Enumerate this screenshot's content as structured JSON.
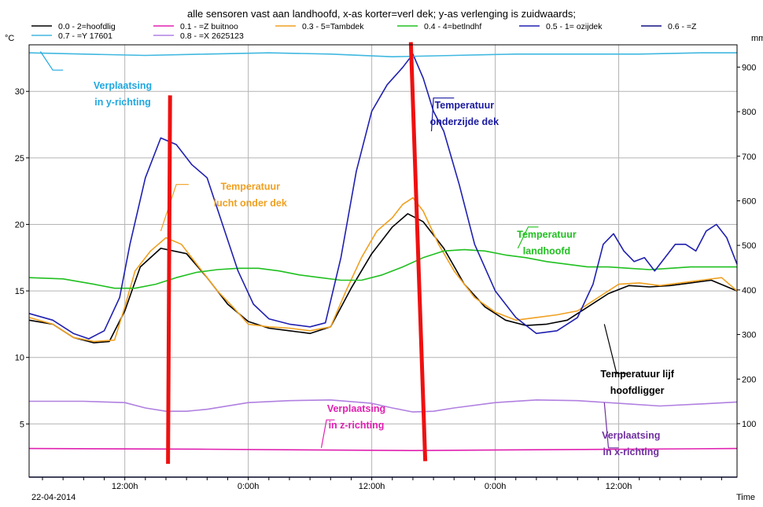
{
  "chart_data": {
    "type": "line",
    "title": "alle sensoren vast aan landhoofd, x-as korter=verl dek; y-as verlenging is zuidwaards;",
    "date_label": "22-04-2014",
    "xlabel": "Time",
    "ylabel_left": "°C",
    "ylabel_right": "mm",
    "x_ticks": [
      {
        "h": 12,
        "label": "12:00h"
      },
      {
        "h": 24,
        "label": "0:00h"
      },
      {
        "h": 36,
        "label": "12:00h"
      },
      {
        "h": 48,
        "label": "0:00h"
      },
      {
        "h": 60,
        "label": "12:00h"
      }
    ],
    "xlim_hours": [
      2.7,
      71.5
    ],
    "ylim_left": [
      1,
      33.5
    ],
    "yticks_left": [
      5,
      10,
      15,
      20,
      25,
      30
    ],
    "ylim_right": [
      -20,
      950
    ],
    "yticks_right": [
      100,
      200,
      300,
      400,
      500,
      600,
      700,
      800,
      900
    ],
    "legend": [
      {
        "label": "0.0 - 2=hoofdlig",
        "color": "#000000"
      },
      {
        "label": "0.1 - =Z buitnoo",
        "color": "#e020b0"
      },
      {
        "label": "0.3 - 5=Tambdek",
        "color": "#f0a020"
      },
      {
        "label": "0.4 - 4=betlndhf",
        "color": "#20c020"
      },
      {
        "label": "0.5 - 1= ozijdek",
        "color": "#2020b0"
      },
      {
        "label": "0.6 - =Z",
        "color": "#101080"
      },
      {
        "label": "0.7 - =Y 17601",
        "color": "#40b8e0"
      },
      {
        "label": "0.8 - =X 2625123",
        "color": "#b080e0"
      }
    ],
    "series": [
      {
        "name": "0.0 - 2=hoofdlig",
        "color": "#000000",
        "axis": "left",
        "x": [
          2.7,
          5,
          7,
          9,
          10.5,
          12,
          13.5,
          15.5,
          18,
          20,
          22,
          24,
          26,
          28,
          30,
          32,
          34,
          36,
          38,
          39.5,
          41,
          43,
          45,
          47,
          49,
          51,
          53,
          55,
          57,
          59,
          61,
          63,
          65,
          67,
          69,
          71.5
        ],
        "y": [
          12.8,
          12.5,
          11.5,
          11.1,
          11.2,
          13.5,
          16.8,
          18.2,
          17.8,
          16.0,
          14.0,
          12.7,
          12.2,
          12.0,
          11.8,
          12.3,
          15.2,
          17.8,
          19.8,
          20.8,
          20.2,
          18.2,
          15.5,
          13.8,
          12.8,
          12.4,
          12.5,
          12.8,
          13.8,
          14.8,
          15.4,
          15.3,
          15.4,
          15.6,
          15.8,
          15.0
        ]
      },
      {
        "name": "0.1 - =Z buitnoo",
        "color": "#e020b0",
        "axis": "left",
        "x": [
          2.7,
          20,
          40,
          60,
          71.5
        ],
        "y": [
          3.15,
          3.1,
          3.0,
          3.1,
          3.15
        ]
      },
      {
        "name": "0.3 - 5=Tambdek",
        "color": "#f0a020",
        "axis": "left",
        "x": [
          2.7,
          5,
          7,
          9,
          11,
          12,
          13,
          14.5,
          16,
          17.5,
          19,
          21,
          22.5,
          24,
          26,
          28,
          30,
          32,
          33.5,
          35,
          36.5,
          38,
          39,
          40,
          41,
          42.5,
          44,
          46,
          48,
          50,
          52,
          54,
          56,
          58,
          60,
          62,
          64,
          66,
          68,
          70,
          71.5
        ],
        "y": [
          13.0,
          12.5,
          11.5,
          11.2,
          11.3,
          13.8,
          16.5,
          18.0,
          19.0,
          18.5,
          17.0,
          15.0,
          13.8,
          12.5,
          12.3,
          12.2,
          12.0,
          12.3,
          15.0,
          17.5,
          19.5,
          20.5,
          21.5,
          22.0,
          21.0,
          18.5,
          16.5,
          14.5,
          13.4,
          12.8,
          13.0,
          13.2,
          13.5,
          14.5,
          15.5,
          15.6,
          15.4,
          15.6,
          15.8,
          16.0,
          15.0
        ]
      },
      {
        "name": "0.4 - 4=betlndhf",
        "color": "#20c020",
        "axis": "left",
        "x": [
          2.7,
          6,
          9,
          11,
          13,
          15,
          17,
          19,
          21,
          23,
          25,
          27,
          29,
          31,
          33,
          35,
          37,
          39,
          41,
          43,
          45,
          47,
          49,
          51,
          53,
          55,
          57,
          59,
          61,
          63,
          65,
          67,
          69,
          71.5
        ],
        "y": [
          16.0,
          15.9,
          15.5,
          15.2,
          15.2,
          15.5,
          16.0,
          16.4,
          16.6,
          16.7,
          16.7,
          16.5,
          16.2,
          16.0,
          15.8,
          15.8,
          16.2,
          16.8,
          17.5,
          18.0,
          18.1,
          18.0,
          17.7,
          17.5,
          17.2,
          17.0,
          16.8,
          16.8,
          16.7,
          16.6,
          16.7,
          16.8,
          16.8,
          16.8
        ]
      },
      {
        "name": "0.5 - 1= ozijdek",
        "color": "#2020b0",
        "axis": "left",
        "x": [
          2.7,
          5,
          7,
          8.5,
          10,
          11.5,
          12.5,
          14,
          15.5,
          17,
          18.5,
          20,
          21.5,
          23,
          24.5,
          26,
          28,
          30,
          31.5,
          33,
          34.5,
          36,
          37.5,
          39,
          40,
          41,
          42,
          43,
          44.5,
          46,
          48,
          50,
          52,
          54,
          56,
          57.5,
          58.5,
          59.5,
          60.5,
          61.5,
          62.5,
          63.5,
          64.5,
          65.5,
          66.5,
          67.5,
          68.5,
          69.5,
          70.5,
          71.5
        ],
        "y": [
          13.3,
          12.8,
          11.8,
          11.4,
          12.0,
          14.5,
          18.5,
          23.5,
          26.5,
          26.0,
          24.5,
          23.5,
          20.0,
          16.5,
          14.0,
          12.9,
          12.5,
          12.3,
          12.6,
          17.5,
          24.0,
          28.5,
          30.5,
          31.8,
          32.8,
          31.0,
          28.5,
          27.0,
          23.0,
          18.5,
          15.0,
          13.0,
          11.8,
          12.0,
          13.0,
          15.5,
          18.5,
          19.3,
          18.0,
          17.2,
          17.5,
          16.5,
          17.5,
          18.5,
          18.5,
          18.0,
          19.5,
          20.0,
          19.0,
          17.0
        ]
      },
      {
        "name": "0.6 - =Z",
        "color": "#101080",
        "axis": "left",
        "x": [
          2.7,
          71.5
        ],
        "y": [
          1.0,
          1.0
        ]
      },
      {
        "name": "0.7 - =Y 17601",
        "color": "#40b8e0",
        "axis": "left",
        "x": [
          2.7,
          8,
          14,
          20,
          26,
          32,
          38,
          44,
          50,
          56,
          62,
          68,
          71.5
        ],
        "y": [
          32.9,
          32.8,
          32.7,
          32.8,
          32.9,
          32.8,
          32.6,
          32.7,
          32.8,
          32.8,
          32.8,
          32.9,
          32.9
        ]
      },
      {
        "name": "0.8 - =X 2625123",
        "color": "#b080e0",
        "axis": "left",
        "x": [
          2.7,
          8,
          12,
          14,
          16,
          18,
          20,
          24,
          28,
          32,
          36,
          38,
          40,
          42,
          44,
          48,
          52,
          56,
          60,
          64,
          68,
          71.5
        ],
        "y": [
          6.7,
          6.7,
          6.6,
          6.2,
          5.95,
          5.95,
          6.1,
          6.6,
          6.75,
          6.8,
          6.55,
          6.2,
          5.9,
          5.95,
          6.2,
          6.6,
          6.8,
          6.75,
          6.55,
          6.35,
          6.5,
          6.65
        ]
      }
    ],
    "annotations": [
      {
        "text": [
          "Verplaatsing",
          "in y-richting"
        ],
        "color": "#20a8e0",
        "anchor_hx": 11.8,
        "anchor_y": 30.2,
        "lead": [
          [
            3.8,
            33.0
          ],
          [
            5.0,
            31.6
          ],
          [
            6.0,
            31.6
          ]
        ]
      },
      {
        "text": [
          "Temperatuur",
          "lucht onder dek"
        ],
        "color": "#f0a020",
        "anchor_hx": 24.2,
        "anchor_y": 22.6,
        "lead": [
          [
            18.2,
            23.0
          ],
          [
            17.0,
            23.0
          ],
          [
            15.5,
            19.5
          ]
        ]
      },
      {
        "text": [
          "Temperatuur",
          "onderzijde dek"
        ],
        "color": "#1a1aa0",
        "anchor_hx": 45.0,
        "anchor_y": 28.7,
        "lead": [
          [
            44.0,
            29.5
          ],
          [
            42.0,
            29.5
          ],
          [
            41.8,
            27.0
          ]
        ]
      },
      {
        "text": [
          "Temperatuur",
          "landhoofd"
        ],
        "color": "#20c020",
        "anchor_hx": 53.0,
        "anchor_y": 19.0,
        "lead": [
          [
            52.2,
            19.8
          ],
          [
            51.2,
            19.8
          ],
          [
            50.2,
            18.2
          ]
        ]
      },
      {
        "text": [
          "Temperatuur lijf",
          "hoofdligger"
        ],
        "color": "#000000",
        "anchor_hx": 61.8,
        "anchor_y": 8.5,
        "lead": [
          [
            60.8,
            8.8
          ],
          [
            59.8,
            8.8
          ],
          [
            58.6,
            12.5
          ]
        ]
      },
      {
        "text": [
          "Verplaatsing",
          "in z-richting"
        ],
        "color": "#e020b0",
        "anchor_hx": 34.5,
        "anchor_y": 5.9,
        "lead": [
          [
            32.4,
            5.3
          ],
          [
            31.6,
            5.3
          ],
          [
            31.1,
            3.2
          ]
        ]
      },
      {
        "text": [
          "Verplaatsing",
          "in x-richting"
        ],
        "color": "#7030a0",
        "anchor_hx": 61.2,
        "anchor_y": 3.9,
        "lead": [
          [
            60.0,
            3.2
          ],
          [
            59.0,
            3.2
          ],
          [
            58.6,
            6.6
          ]
        ]
      }
    ],
    "markers": [
      {
        "type": "red-vertical-line",
        "color": "#ee1111",
        "x1": 16.2,
        "y1": 2.0,
        "x2": 16.4,
        "y2": 29.7
      },
      {
        "type": "red-vertical-line",
        "color": "#ee1111",
        "x1": 41.2,
        "y1": 2.2,
        "x2": 39.8,
        "y2": 33.7
      }
    ]
  }
}
